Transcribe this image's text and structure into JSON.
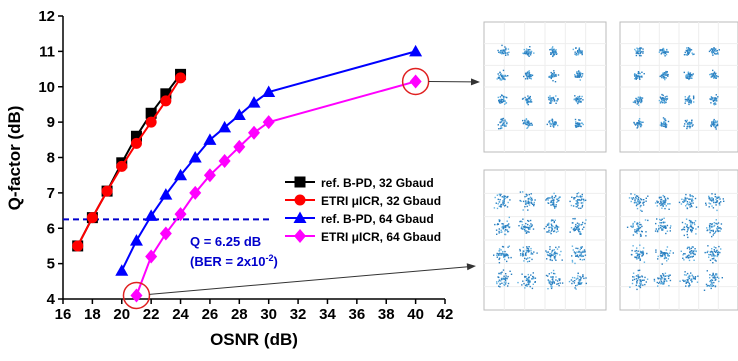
{
  "chart_data": {
    "type": "line",
    "xlabel": "OSNR (dB)",
    "ylabel": "Q-factor (dB)",
    "xlim": [
      16,
      42
    ],
    "xticks": [
      16,
      18,
      20,
      22,
      24,
      26,
      28,
      30,
      32,
      34,
      36,
      38,
      40,
      42
    ],
    "ylim": [
      4,
      12
    ],
    "yticks": [
      4,
      5,
      6,
      7,
      8,
      9,
      10,
      11,
      12
    ],
    "legend": "center-right",
    "series": [
      {
        "name": "ref. B-PD, 32 Gbaud",
        "color": "#000000",
        "marker": "square",
        "x": [
          17,
          18,
          19,
          20,
          21,
          22,
          23,
          24
        ],
        "values": [
          5.5,
          6.3,
          7.05,
          7.85,
          8.6,
          9.25,
          9.8,
          10.35
        ]
      },
      {
        "name": "ETRI μICR, 32 Gbaud",
        "color": "#ff0000",
        "marker": "circle",
        "x": [
          17,
          18,
          19,
          20,
          21,
          22,
          23,
          24
        ],
        "values": [
          5.5,
          6.3,
          7.05,
          7.75,
          8.4,
          9.0,
          9.6,
          10.25
        ]
      },
      {
        "name": "ref. B-PD, 64 Gbaud",
        "color": "#0000ff",
        "marker": "triangle",
        "x": [
          20,
          21,
          22,
          23,
          24,
          25,
          26,
          27,
          28,
          29,
          30,
          40
        ],
        "values": [
          4.8,
          5.65,
          6.35,
          6.95,
          7.5,
          8.0,
          8.5,
          8.85,
          9.2,
          9.55,
          9.85,
          11.0
        ]
      },
      {
        "name": "ETRI μICR, 64 Gbaud",
        "color": "#ff00ff",
        "marker": "diamond",
        "x": [
          21,
          22,
          23,
          24,
          25,
          26,
          27,
          28,
          29,
          30,
          40
        ],
        "values": [
          4.1,
          5.2,
          5.85,
          6.4,
          7.0,
          7.5,
          7.9,
          8.3,
          8.7,
          9.0,
          10.15
        ]
      }
    ],
    "threshold": {
      "value": 6.25,
      "color": "#0000cc",
      "label": "Q = 6.25 dB",
      "note_start": "(BER = 2x10",
      "note_exp": "-2",
      "note_end": ")"
    }
  }
}
